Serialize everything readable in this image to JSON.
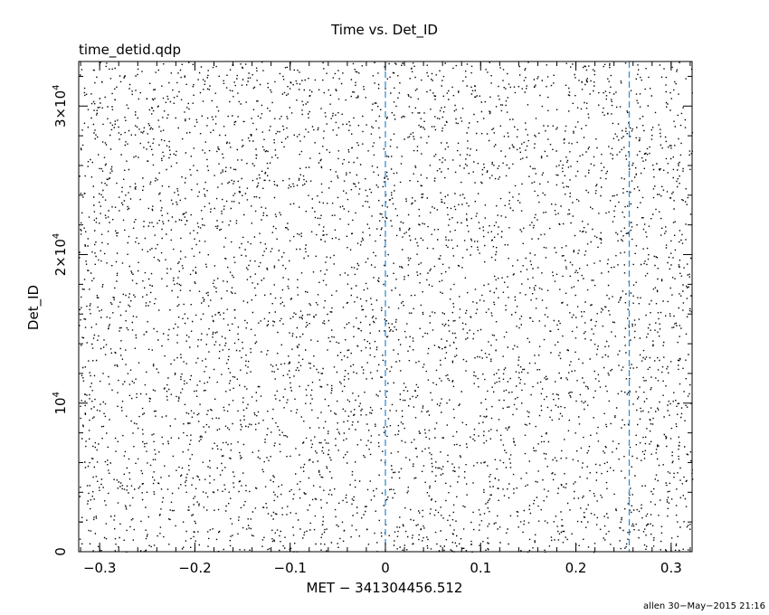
{
  "chart_data": {
    "type": "scatter",
    "title": "Time vs. Det_ID",
    "subtitle": "time_detid.qdp",
    "xlabel": "MET − 341304456.512",
    "ylabel": "Det_ID",
    "xlim": [
      -0.322,
      0.322
    ],
    "ylim": [
      0,
      33000
    ],
    "x_ticks": [
      {
        "value": -0.3,
        "label": "−0.3"
      },
      {
        "value": -0.2,
        "label": "−0.2"
      },
      {
        "value": -0.1,
        "label": "−0.1"
      },
      {
        "value": 0.0,
        "label": "0"
      },
      {
        "value": 0.1,
        "label": "0.1"
      },
      {
        "value": 0.2,
        "label": "0.2"
      },
      {
        "value": 0.3,
        "label": "0.3"
      }
    ],
    "y_ticks": [
      {
        "value": 0,
        "mantissa": "0",
        "exponent": ""
      },
      {
        "value": 10000,
        "mantissa": "10",
        "exponent": "4"
      },
      {
        "value": 20000,
        "mantissa": "2×10",
        "exponent": "4"
      },
      {
        "value": 30000,
        "mantissa": "3×10",
        "exponent": "4"
      }
    ],
    "vlines": [
      {
        "x": 0.0,
        "color": "#3a8fd0",
        "style": "dashed"
      },
      {
        "x": 0.256,
        "color": "#3a8fd0",
        "style": "dashed"
      }
    ],
    "series": [
      {
        "marker": "dot",
        "color": "#000000",
        "points_note_density": "approx. uniform scatter of ~5000 events over full x and y range"
      }
    ],
    "grid": false
  },
  "footer": "allen 30−May−2015 21:16"
}
